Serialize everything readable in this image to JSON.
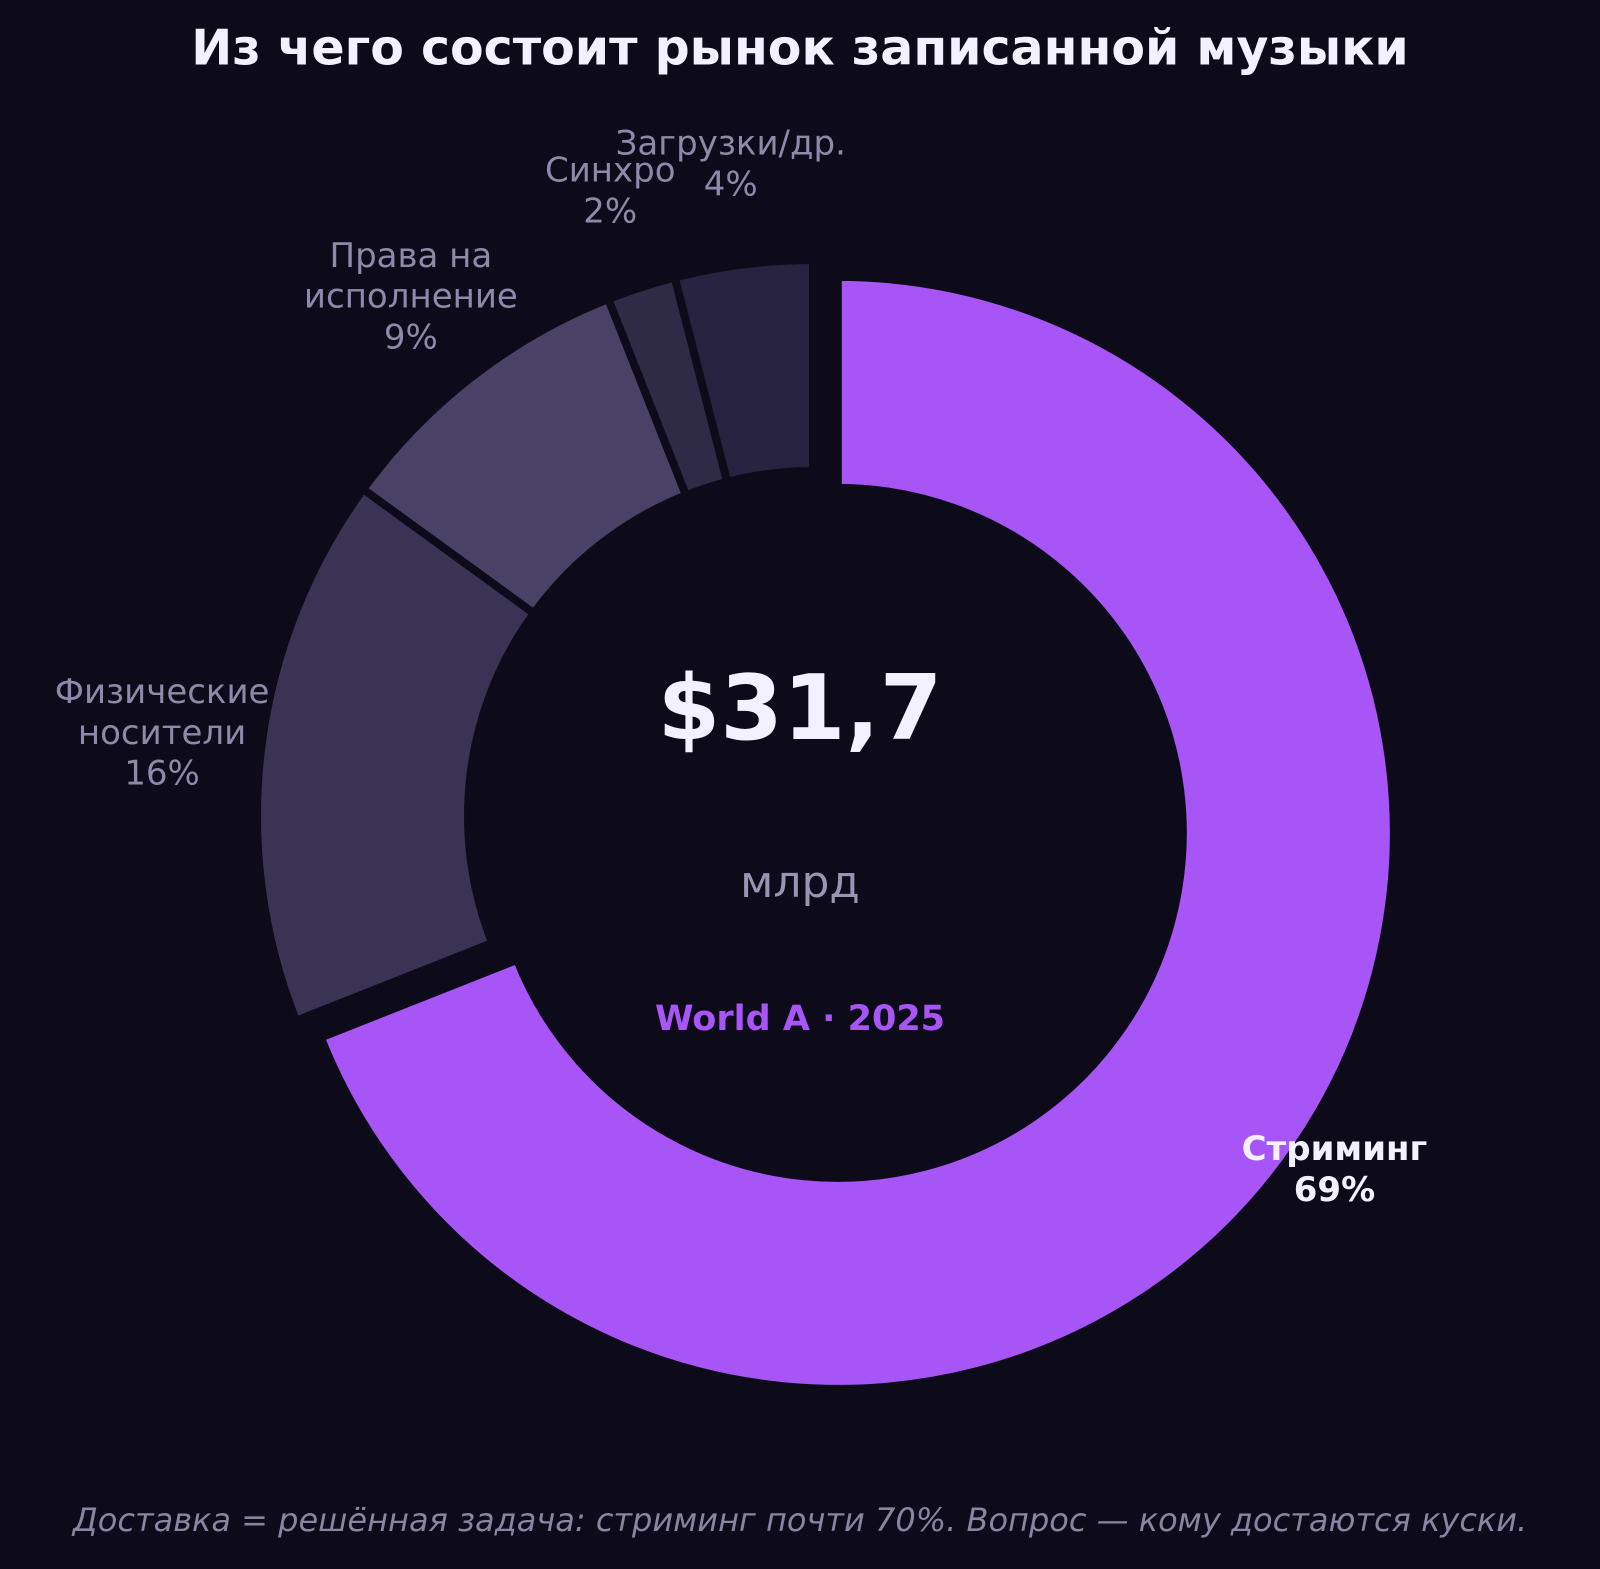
{
  "chart_data": {
    "type": "pie",
    "title": "Из чего состоит рынок записанной музыки",
    "categories": [
      "Стриминг",
      "Физические\nносители",
      "Права на\nисполнение",
      "Синхро",
      "Загрузки/др."
    ],
    "values": [
      69,
      16,
      9,
      2,
      4
    ],
    "value_labels": [
      "69%",
      "16%",
      "9%",
      "2%",
      "4%"
    ],
    "colors": [
      "#a855f7",
      "#3b3354",
      "#4a4266",
      "#2f2a45",
      "#27223f"
    ],
    "center": {
      "value": 31.7,
      "label": "$31,7"
    },
    "center_unit": "млрд",
    "center_subtitle": "World A · 2025",
    "footnote": "Доставка = решённая задача: стриминг почти 70%. Вопрос — кому достаются куски."
  }
}
